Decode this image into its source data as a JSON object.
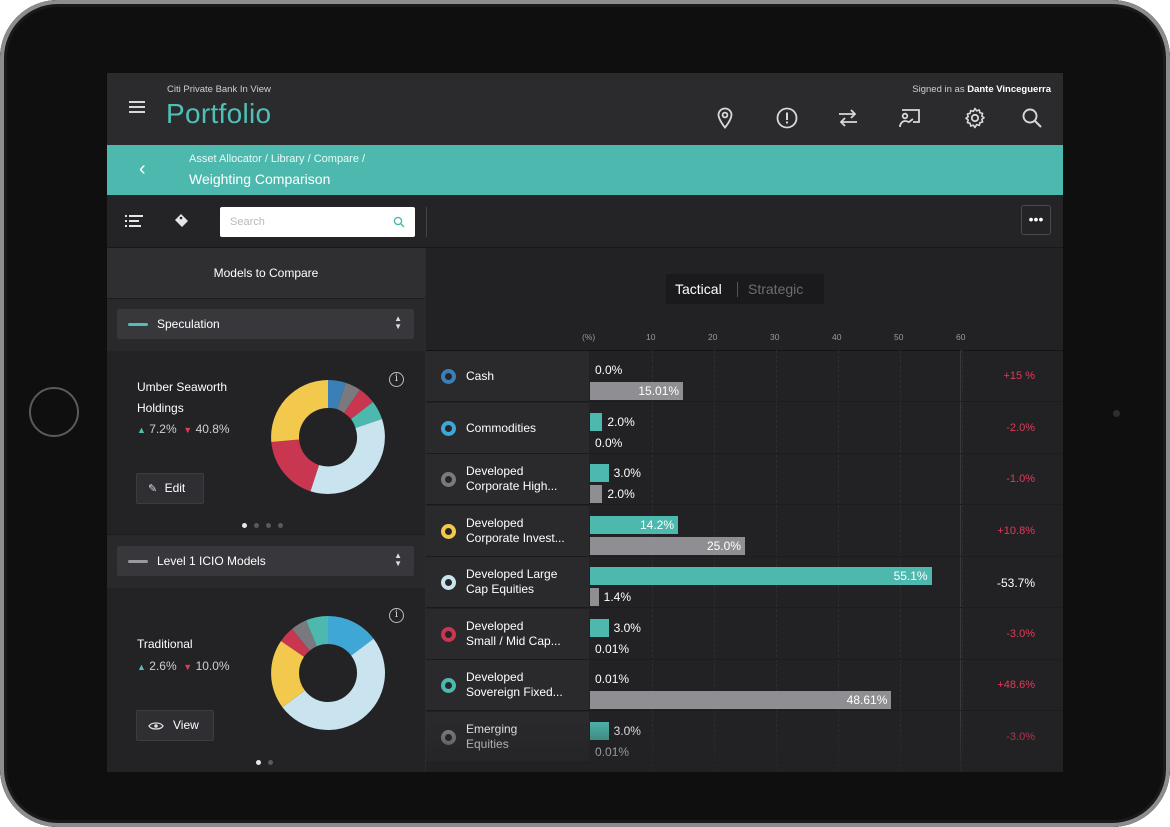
{
  "app": {
    "bank_name": "Citi Private Bank In View",
    "title": "Portfolio",
    "signed_in_prefix": "Signed in as",
    "user": "Dante Vinceguerra"
  },
  "icons": [
    "location-pin-icon",
    "alert-icon",
    "transfer-icon",
    "presentation-icon",
    "gear-icon",
    "search-icon"
  ],
  "breadcrumb": {
    "path": "Asset Allocator / Library / Compare /",
    "current": "Weighting Comparison"
  },
  "toolbar": {
    "search_placeholder": "Search"
  },
  "left_panel": {
    "header": "Models to Compare",
    "models": [
      {
        "select_label": "Speculation",
        "accent": "#4fc0b5",
        "name_line1": "Umber Seaworth",
        "name_line2": "Holdings",
        "up": "7.2%",
        "down": "40.8%",
        "button": "Edit"
      },
      {
        "select_label": "Level 1 ICIO Models",
        "accent": "#9a9a9e",
        "name_line1": "Traditional",
        "name_line2": "",
        "up": "2.6%",
        "down": "10.0%",
        "button": "View"
      }
    ]
  },
  "comparison": {
    "tab_active": "Tactical",
    "tab_inactive": "Strategic",
    "axis_unit": "(%)",
    "axis_ticks": [
      "10",
      "20",
      "30",
      "40",
      "50",
      "60"
    ],
    "colors": {
      "primary": "#4db9ae",
      "secondary": "#8f8f93",
      "negative": "#e03a5a"
    },
    "rows": [
      {
        "l1": "Cash",
        "l2": "",
        "ring": "#3a7fb5",
        "a": 0.0,
        "a_label": "0.0%",
        "b": 15.01,
        "b_label": "15.01%",
        "diff": "+15 %"
      },
      {
        "l1": "Commodities",
        "l2": "",
        "ring": "#3fa7d6",
        "a": 2.0,
        "a_label": "2.0%",
        "b": 0.0,
        "b_label": "0.0%",
        "diff": "-2.0%"
      },
      {
        "l1": "Developed",
        "l2": "Corporate High...",
        "ring": "#7a7a7e",
        "a": 3.0,
        "a_label": "3.0%",
        "b": 2.0,
        "b_label": "2.0%",
        "diff": "-1.0%"
      },
      {
        "l1": "Developed",
        "l2": "Corporate Invest...",
        "ring": "#f2c94c",
        "a": 14.2,
        "a_label": "14.2%",
        "b": 25.0,
        "b_label": "25.0%",
        "diff": "+10.8%"
      },
      {
        "l1": "Developed Large",
        "l2": "Cap Equities",
        "ring": "#c9e4ef",
        "a": 55.1,
        "a_label": "55.1%",
        "b": 1.4,
        "b_label": "1.4%",
        "diff": "-53.7%"
      },
      {
        "l1": "Developed",
        "l2": "Small / Mid Cap...",
        "ring": "#c8364f",
        "a": 3.0,
        "a_label": "3.0%",
        "b": 0.01,
        "b_label": "0.01%",
        "diff": "-3.0%"
      },
      {
        "l1": "Developed",
        "l2": "Sovereign Fixed...",
        "ring": "#4db9ae",
        "a": 0.01,
        "a_label": "0.01%",
        "b": 48.61,
        "b_label": "48.61%",
        "diff": "+48.6%"
      },
      {
        "l1": "Emerging",
        "l2": "Equities",
        "ring": "#8a8a8e",
        "a": 3.0,
        "a_label": "3.0%",
        "b": 0.01,
        "b_label": "0.01%",
        "diff": "-3.0%"
      }
    ]
  }
}
